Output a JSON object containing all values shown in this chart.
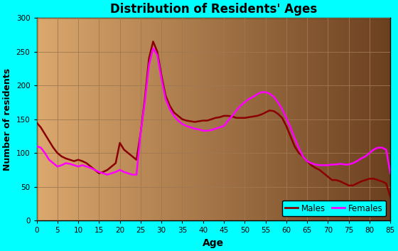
{
  "title": "Distribution of Residents' Ages",
  "xlabel": "Age",
  "ylabel": "Number of residents",
  "xlim": [
    0,
    85
  ],
  "ylim": [
    0,
    300
  ],
  "xticks": [
    0,
    5,
    10,
    15,
    20,
    25,
    30,
    35,
    40,
    45,
    50,
    55,
    60,
    65,
    70,
    75,
    80,
    85
  ],
  "yticks": [
    0,
    50,
    100,
    150,
    200,
    250,
    300
  ],
  "bg_outer": "#00ffff",
  "grid_color": "#a07850",
  "males_color": "#8b0000",
  "females_color": "#ff00ff",
  "line_width": 1.8,
  "males_ages": [
    0,
    1,
    2,
    3,
    4,
    5,
    6,
    7,
    8,
    9,
    10,
    11,
    12,
    13,
    14,
    15,
    16,
    17,
    18,
    19,
    20,
    21,
    22,
    23,
    24,
    25,
    26,
    27,
    28,
    29,
    30,
    31,
    32,
    33,
    34,
    35,
    36,
    37,
    38,
    39,
    40,
    41,
    42,
    43,
    44,
    45,
    46,
    47,
    48,
    49,
    50,
    51,
    52,
    53,
    54,
    55,
    56,
    57,
    58,
    59,
    60,
    61,
    62,
    63,
    64,
    65,
    66,
    67,
    68,
    69,
    70,
    71,
    72,
    73,
    74,
    75,
    76,
    77,
    78,
    79,
    80,
    81,
    82,
    83,
    84,
    85
  ],
  "males_values": [
    145,
    138,
    128,
    118,
    108,
    100,
    95,
    92,
    90,
    88,
    90,
    88,
    85,
    80,
    75,
    70,
    72,
    75,
    80,
    85,
    115,
    105,
    100,
    95,
    90,
    130,
    180,
    240,
    265,
    250,
    215,
    185,
    170,
    160,
    155,
    150,
    148,
    147,
    146,
    147,
    148,
    148,
    150,
    152,
    153,
    155,
    155,
    154,
    152,
    152,
    152,
    153,
    154,
    155,
    157,
    160,
    163,
    162,
    158,
    152,
    140,
    125,
    110,
    100,
    95,
    88,
    82,
    78,
    75,
    70,
    65,
    60,
    60,
    58,
    55,
    52,
    52,
    55,
    58,
    60,
    62,
    62,
    60,
    58,
    55,
    35
  ],
  "females_ages": [
    0,
    1,
    2,
    3,
    4,
    5,
    6,
    7,
    8,
    9,
    10,
    11,
    12,
    13,
    14,
    15,
    16,
    17,
    18,
    19,
    20,
    21,
    22,
    23,
    24,
    25,
    26,
    27,
    28,
    29,
    30,
    31,
    32,
    33,
    34,
    35,
    36,
    37,
    38,
    39,
    40,
    41,
    42,
    43,
    44,
    45,
    46,
    47,
    48,
    49,
    50,
    51,
    52,
    53,
    54,
    55,
    56,
    57,
    58,
    59,
    60,
    61,
    62,
    63,
    64,
    65,
    66,
    67,
    68,
    69,
    70,
    71,
    72,
    73,
    74,
    75,
    76,
    77,
    78,
    79,
    80,
    81,
    82,
    83,
    84,
    85
  ],
  "females_values": [
    110,
    108,
    100,
    90,
    85,
    80,
    82,
    85,
    84,
    82,
    80,
    82,
    80,
    78,
    75,
    72,
    70,
    68,
    70,
    72,
    75,
    72,
    70,
    68,
    68,
    130,
    175,
    230,
    255,
    245,
    210,
    180,
    165,
    155,
    148,
    143,
    140,
    138,
    136,
    135,
    133,
    133,
    134,
    136,
    138,
    140,
    148,
    155,
    163,
    170,
    175,
    180,
    183,
    187,
    190,
    190,
    188,
    183,
    175,
    165,
    152,
    138,
    122,
    108,
    95,
    88,
    85,
    83,
    82,
    82,
    82,
    83,
    83,
    84,
    83,
    83,
    85,
    88,
    92,
    95,
    100,
    105,
    108,
    108,
    105,
    70
  ]
}
